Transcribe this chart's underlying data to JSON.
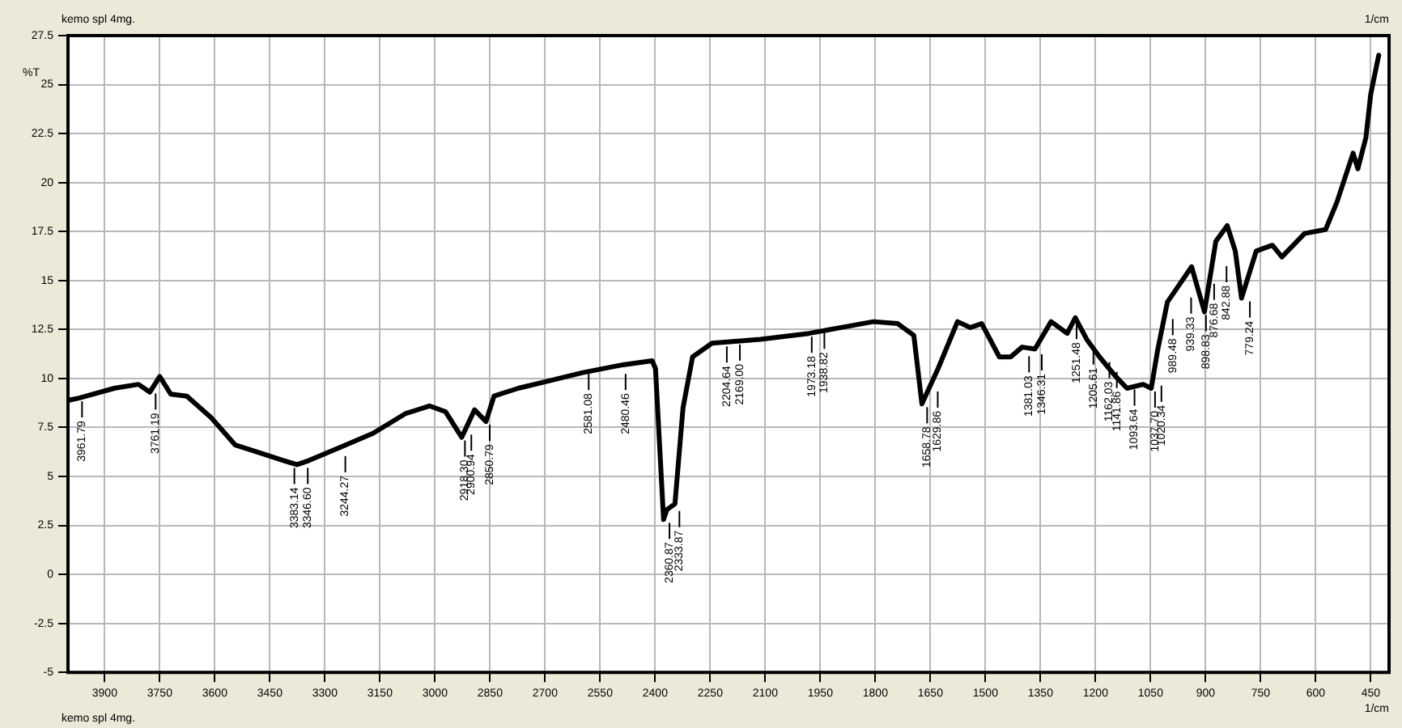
{
  "chart_data": {
    "type": "line",
    "xlabel": "1/cm",
    "ylabel": "%T",
    "x": [
      3995,
      3970,
      3874,
      3808,
      3777,
      3750,
      3720,
      3676,
      3610,
      3544,
      3477,
      3411,
      3376,
      3345,
      3257,
      3169,
      3081,
      3015,
      2971,
      2927,
      2892,
      2861,
      2839,
      2773,
      2685,
      2597,
      2487,
      2408,
      2399,
      2377,
      2368,
      2346,
      2324,
      2298,
      2245,
      2113,
      1981,
      1893,
      1805,
      1739,
      1695,
      1673,
      1629,
      1576,
      1541,
      1510,
      1462,
      1431,
      1400,
      1365,
      1321,
      1277,
      1255,
      1224,
      1189,
      1145,
      1114,
      1070,
      1048,
      1031,
      1004,
      982,
      938,
      903,
      872,
      841,
      819,
      802,
      762,
      718,
      692,
      630,
      573,
      542,
      498,
      485,
      463,
      450,
      428
    ],
    "series": [
      {
        "color": "#000000",
        "values": [
          8.9,
          9.0,
          9.5,
          9.7,
          9.3,
          10.1,
          9.2,
          9.1,
          8.0,
          6.6,
          6.2,
          5.8,
          5.6,
          5.8,
          6.5,
          7.2,
          8.2,
          8.6,
          8.3,
          7.0,
          8.4,
          7.8,
          9.1,
          9.5,
          9.9,
          10.3,
          10.7,
          10.9,
          10.5,
          2.8,
          3.3,
          3.6,
          8.5,
          11.1,
          11.8,
          12.0,
          12.3,
          12.6,
          12.9,
          12.8,
          12.2,
          8.7,
          10.5,
          12.9,
          12.6,
          12.8,
          11.1,
          11.1,
          11.6,
          11.5,
          12.9,
          12.3,
          13.1,
          12.0,
          11.1,
          10.1,
          9.5,
          9.7,
          9.5,
          11.4,
          13.9,
          14.5,
          15.7,
          13.4,
          17.0,
          17.8,
          16.5,
          14.1,
          16.5,
          16.8,
          16.2,
          17.4,
          17.6,
          19.0,
          21.5,
          20.7,
          22.3,
          24.5,
          26.5
        ]
      }
    ],
    "xlim": [
      4000,
      400
    ],
    "xticks": [
      3900,
      3750,
      3600,
      3450,
      3300,
      3150,
      3000,
      2850,
      2700,
      2550,
      2400,
      2250,
      2100,
      1950,
      1800,
      1650,
      1500,
      1350,
      1200,
      1050,
      900,
      750,
      600,
      450
    ],
    "ylim": [
      -5,
      27.5
    ],
    "yticks": [
      -5,
      -2.5,
      0,
      2.5,
      5,
      7.5,
      10,
      12.5,
      15,
      17.5,
      20,
      22.5,
      25,
      27.5
    ],
    "grid": true,
    "legend": false,
    "marker": "none",
    "line_style": "solid",
    "annotations": [
      "kemo spl 4mg.",
      "kemo spl 4mg.",
      "1/cm",
      {
        "text": "3961.79",
        "x": 3961.79,
        "y": 9.0
      },
      {
        "text": "3761.19",
        "x": 3761.19,
        "y": 9.4
      },
      {
        "text": "3383.14",
        "x": 3383.14,
        "y": 5.6
      },
      {
        "text": "3346.60",
        "x": 3346.6,
        "y": 5.6
      },
      {
        "text": "3244.27",
        "x": 3244.27,
        "y": 6.2
      },
      {
        "text": "2918.30",
        "x": 2918.3,
        "y": 7.0
      },
      {
        "text": "2900.94",
        "x": 2900.94,
        "y": 7.3
      },
      {
        "text": "2850.79",
        "x": 2850.79,
        "y": 7.8
      },
      {
        "text": "2581.08",
        "x": 2581.08,
        "y": 10.4
      },
      {
        "text": "2480.46",
        "x": 2480.46,
        "y": 10.4
      },
      {
        "text": "2360.87",
        "x": 2360.87,
        "y": 2.8
      },
      {
        "text": "2333.87",
        "x": 2333.87,
        "y": 3.4
      },
      {
        "text": "2204.64",
        "x": 2204.64,
        "y": 11.8
      },
      {
        "text": "2169.00",
        "x": 2169.0,
        "y": 11.9
      },
      {
        "text": "1973.18",
        "x": 1973.18,
        "y": 12.3
      },
      {
        "text": "1938.82",
        "x": 1938.82,
        "y": 12.5
      },
      {
        "text": "1658.78",
        "x": 1658.78,
        "y": 8.7
      },
      {
        "text": "1629.86",
        "x": 1629.86,
        "y": 9.5
      },
      {
        "text": "1381.03",
        "x": 1381.03,
        "y": 11.3
      },
      {
        "text": "1346.31",
        "x": 1346.31,
        "y": 11.4
      },
      {
        "text": "1251.48",
        "x": 1251.48,
        "y": 13.0
      },
      {
        "text": "1205.61",
        "x": 1205.61,
        "y": 11.7
      },
      {
        "text": "1162.03",
        "x": 1162.03,
        "y": 11.0
      },
      {
        "text": "1141.86",
        "x": 1141.86,
        "y": 10.5
      },
      {
        "text": "1093.64",
        "x": 1093.64,
        "y": 9.6
      },
      {
        "text": "1037.70",
        "x": 1037.7,
        "y": 9.5
      },
      {
        "text": "1020.34",
        "x": 1020.34,
        "y": 9.8
      },
      {
        "text": "989.48",
        "x": 989.48,
        "y": 13.2
      },
      {
        "text": "939.33",
        "x": 939.33,
        "y": 14.3
      },
      {
        "text": "898.83",
        "x": 898.83,
        "y": 13.4
      },
      {
        "text": "876.68",
        "x": 876.68,
        "y": 15.0
      },
      {
        "text": "842.88",
        "x": 842.88,
        "y": 15.9
      },
      {
        "text": "779.24",
        "x": 779.24,
        "y": 14.1
      }
    ]
  }
}
